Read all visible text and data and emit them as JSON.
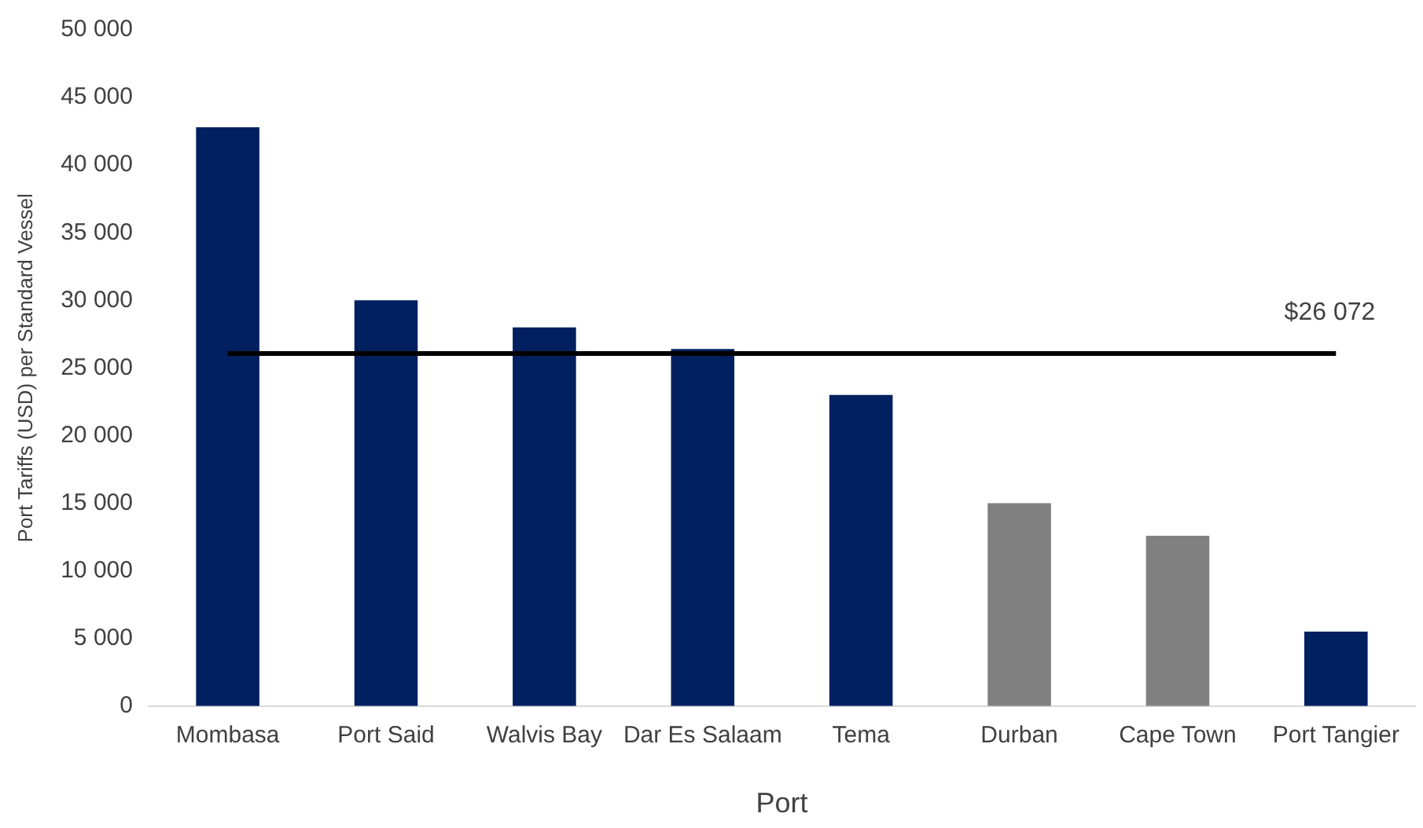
{
  "chart_data": {
    "type": "bar",
    "xlabel": "Port",
    "ylabel": "Port Tariffs (USD) per Standard Vessel",
    "categories": [
      "Mombasa",
      "Port Said",
      "Walvis Bay",
      "Dar Es Salaam",
      "Tema",
      "Durban",
      "Cape Town",
      "Port Tangier"
    ],
    "values": [
      42800,
      30000,
      28000,
      26400,
      23000,
      15000,
      12600,
      5500
    ],
    "colors": [
      "#002060",
      "#002060",
      "#002060",
      "#002060",
      "#002060",
      "#808080",
      "#808080",
      "#002060"
    ],
    "ylim": [
      0,
      50000
    ],
    "yticks": [
      {
        "value": 0,
        "label": "0"
      },
      {
        "value": 5000,
        "label": "5 000"
      },
      {
        "value": 10000,
        "label": "10 000"
      },
      {
        "value": 15000,
        "label": "15 000"
      },
      {
        "value": 20000,
        "label": "20 000"
      },
      {
        "value": 25000,
        "label": "25 000"
      },
      {
        "value": 30000,
        "label": "30 000"
      },
      {
        "value": 35000,
        "label": "35 000"
      },
      {
        "value": 40000,
        "label": "40 000"
      },
      {
        "value": 45000,
        "label": "45 000"
      },
      {
        "value": 50000,
        "label": "50 000"
      }
    ],
    "ref_lines": [
      {
        "axis": "y",
        "value": 26072,
        "label": "$26 072",
        "color": "#000000"
      }
    ],
    "grid": false,
    "legend": false
  }
}
